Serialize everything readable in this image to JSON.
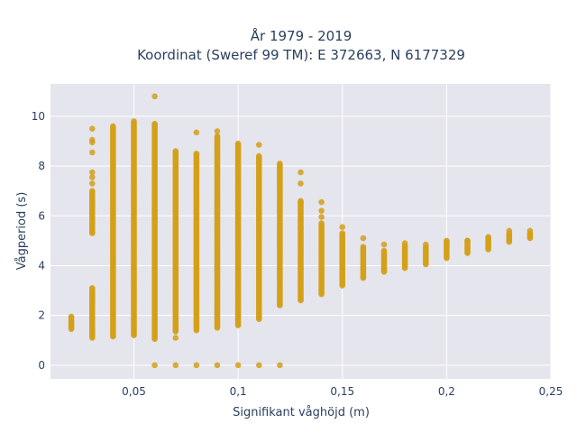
{
  "chart_data": {
    "type": "scatter",
    "title_line1": "År 1979 - 2019",
    "title_line2": "Koordinat (Sweref 99 TM): E 372663, N 6177329",
    "xlabel": "Signifikant våghöjd (m)",
    "ylabel": "Vågperiod (s)",
    "xlim": [
      0.01,
      0.25
    ],
    "ylim": [
      -0.55,
      11.3
    ],
    "x_ticks": [
      0.05,
      0.1,
      0.15,
      0.2,
      0.25
    ],
    "x_tick_labels": [
      "0,05",
      "0,1",
      "0,15",
      "0,2",
      "0,25"
    ],
    "y_ticks": [
      0,
      2,
      4,
      6,
      8,
      10
    ],
    "y_tick_labels": [
      "0",
      "2",
      "4",
      "6",
      "8",
      "10"
    ],
    "grid": true,
    "colors": {
      "marker": "#d4a017",
      "plot_bg": "#e5e5ee",
      "grid": "#ffffff"
    },
    "columns": [
      {
        "x": 0.02,
        "ymin": 1.45,
        "ymax": 1.95,
        "zero": false
      },
      {
        "x": 0.03,
        "ymin": 1.1,
        "ymax": 3.1,
        "zero": false
      },
      {
        "x": 0.03,
        "ymin": 5.3,
        "ymax": 7.0,
        "zero": false
      },
      {
        "x": 0.04,
        "ymin": 1.15,
        "ymax": 9.6,
        "zero": false
      },
      {
        "x": 0.05,
        "ymin": 1.2,
        "ymax": 9.8,
        "zero": false
      },
      {
        "x": 0.06,
        "ymin": 1.05,
        "ymax": 9.7,
        "zero": true
      },
      {
        "x": 0.07,
        "ymin": 1.35,
        "ymax": 8.6,
        "zero": true
      },
      {
        "x": 0.08,
        "ymin": 1.4,
        "ymax": 8.5,
        "zero": true
      },
      {
        "x": 0.09,
        "ymin": 1.5,
        "ymax": 9.2,
        "zero": true
      },
      {
        "x": 0.1,
        "ymin": 1.6,
        "ymax": 8.9,
        "zero": true
      },
      {
        "x": 0.11,
        "ymin": 1.85,
        "ymax": 8.4,
        "zero": true
      },
      {
        "x": 0.12,
        "ymin": 2.4,
        "ymax": 8.1,
        "zero": true
      },
      {
        "x": 0.13,
        "ymin": 2.6,
        "ymax": 6.6,
        "zero": false
      },
      {
        "x": 0.14,
        "ymin": 2.85,
        "ymax": 5.7,
        "zero": false
      },
      {
        "x": 0.15,
        "ymin": 3.2,
        "ymax": 5.3,
        "zero": false
      },
      {
        "x": 0.16,
        "ymin": 3.5,
        "ymax": 4.75,
        "zero": false
      },
      {
        "x": 0.17,
        "ymin": 3.75,
        "ymax": 4.6,
        "zero": false
      },
      {
        "x": 0.18,
        "ymin": 3.9,
        "ymax": 4.8,
        "zero": false
      },
      {
        "x": 0.19,
        "ymin": 4.05,
        "ymax": 4.75,
        "zero": false
      },
      {
        "x": 0.2,
        "ymin": 4.3,
        "ymax": 5.0,
        "zero": false
      },
      {
        "x": 0.21,
        "ymin": 4.5,
        "ymax": 5.0,
        "zero": false
      },
      {
        "x": 0.22,
        "ymin": 4.65,
        "ymax": 5.1,
        "zero": false
      },
      {
        "x": 0.23,
        "ymin": 4.95,
        "ymax": 5.3,
        "zero": false
      },
      {
        "x": 0.24,
        "ymin": 5.1,
        "ymax": 5.3,
        "zero": false
      }
    ],
    "outliers": [
      {
        "x": 0.03,
        "y": 9.5
      },
      {
        "x": 0.03,
        "y": 9.05
      },
      {
        "x": 0.03,
        "y": 8.95
      },
      {
        "x": 0.03,
        "y": 8.55
      },
      {
        "x": 0.03,
        "y": 7.75
      },
      {
        "x": 0.03,
        "y": 7.3
      },
      {
        "x": 0.03,
        "y": 7.55
      },
      {
        "x": 0.04,
        "y": 4.25
      },
      {
        "x": 0.06,
        "y": 10.8
      },
      {
        "x": 0.07,
        "y": 1.1
      },
      {
        "x": 0.08,
        "y": 9.35
      },
      {
        "x": 0.09,
        "y": 9.4
      },
      {
        "x": 0.11,
        "y": 8.85
      },
      {
        "x": 0.13,
        "y": 7.75
      },
      {
        "x": 0.13,
        "y": 7.3
      },
      {
        "x": 0.13,
        "y": 6.55
      },
      {
        "x": 0.13,
        "y": 5.5
      },
      {
        "x": 0.14,
        "y": 6.55
      },
      {
        "x": 0.14,
        "y": 6.2
      },
      {
        "x": 0.14,
        "y": 5.95
      },
      {
        "x": 0.15,
        "y": 5.55
      },
      {
        "x": 0.15,
        "y": 5.0
      },
      {
        "x": 0.16,
        "y": 5.1
      },
      {
        "x": 0.17,
        "y": 4.85
      },
      {
        "x": 0.18,
        "y": 4.9
      },
      {
        "x": 0.19,
        "y": 4.85
      },
      {
        "x": 0.21,
        "y": 5.0
      },
      {
        "x": 0.22,
        "y": 5.15
      },
      {
        "x": 0.23,
        "y": 5.4
      },
      {
        "x": 0.24,
        "y": 5.4
      }
    ]
  }
}
